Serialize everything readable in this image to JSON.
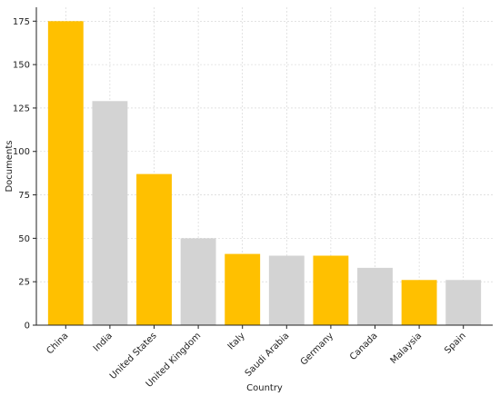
{
  "chart_data": {
    "type": "bar",
    "title": "",
    "xlabel": "Country",
    "ylabel": "Documents",
    "categories": [
      "China",
      "India",
      "United States",
      "United Kingdom",
      "Italy",
      "Saudi Arabia",
      "Germany",
      "Canada",
      "Malaysia",
      "Spain"
    ],
    "values": [
      175,
      129,
      87,
      50,
      41,
      40,
      40,
      33,
      26,
      26
    ],
    "bar_colors": [
      "#FFC000",
      "#D3D3D3",
      "#FFC000",
      "#D3D3D3",
      "#FFC000",
      "#D3D3D3",
      "#FFC000",
      "#D3D3D3",
      "#FFC000",
      "#D3D3D3"
    ],
    "ylim": [
      0,
      183
    ],
    "yticks": [
      0,
      25,
      50,
      75,
      100,
      125,
      150,
      175
    ],
    "grid": true,
    "legend": "none"
  }
}
